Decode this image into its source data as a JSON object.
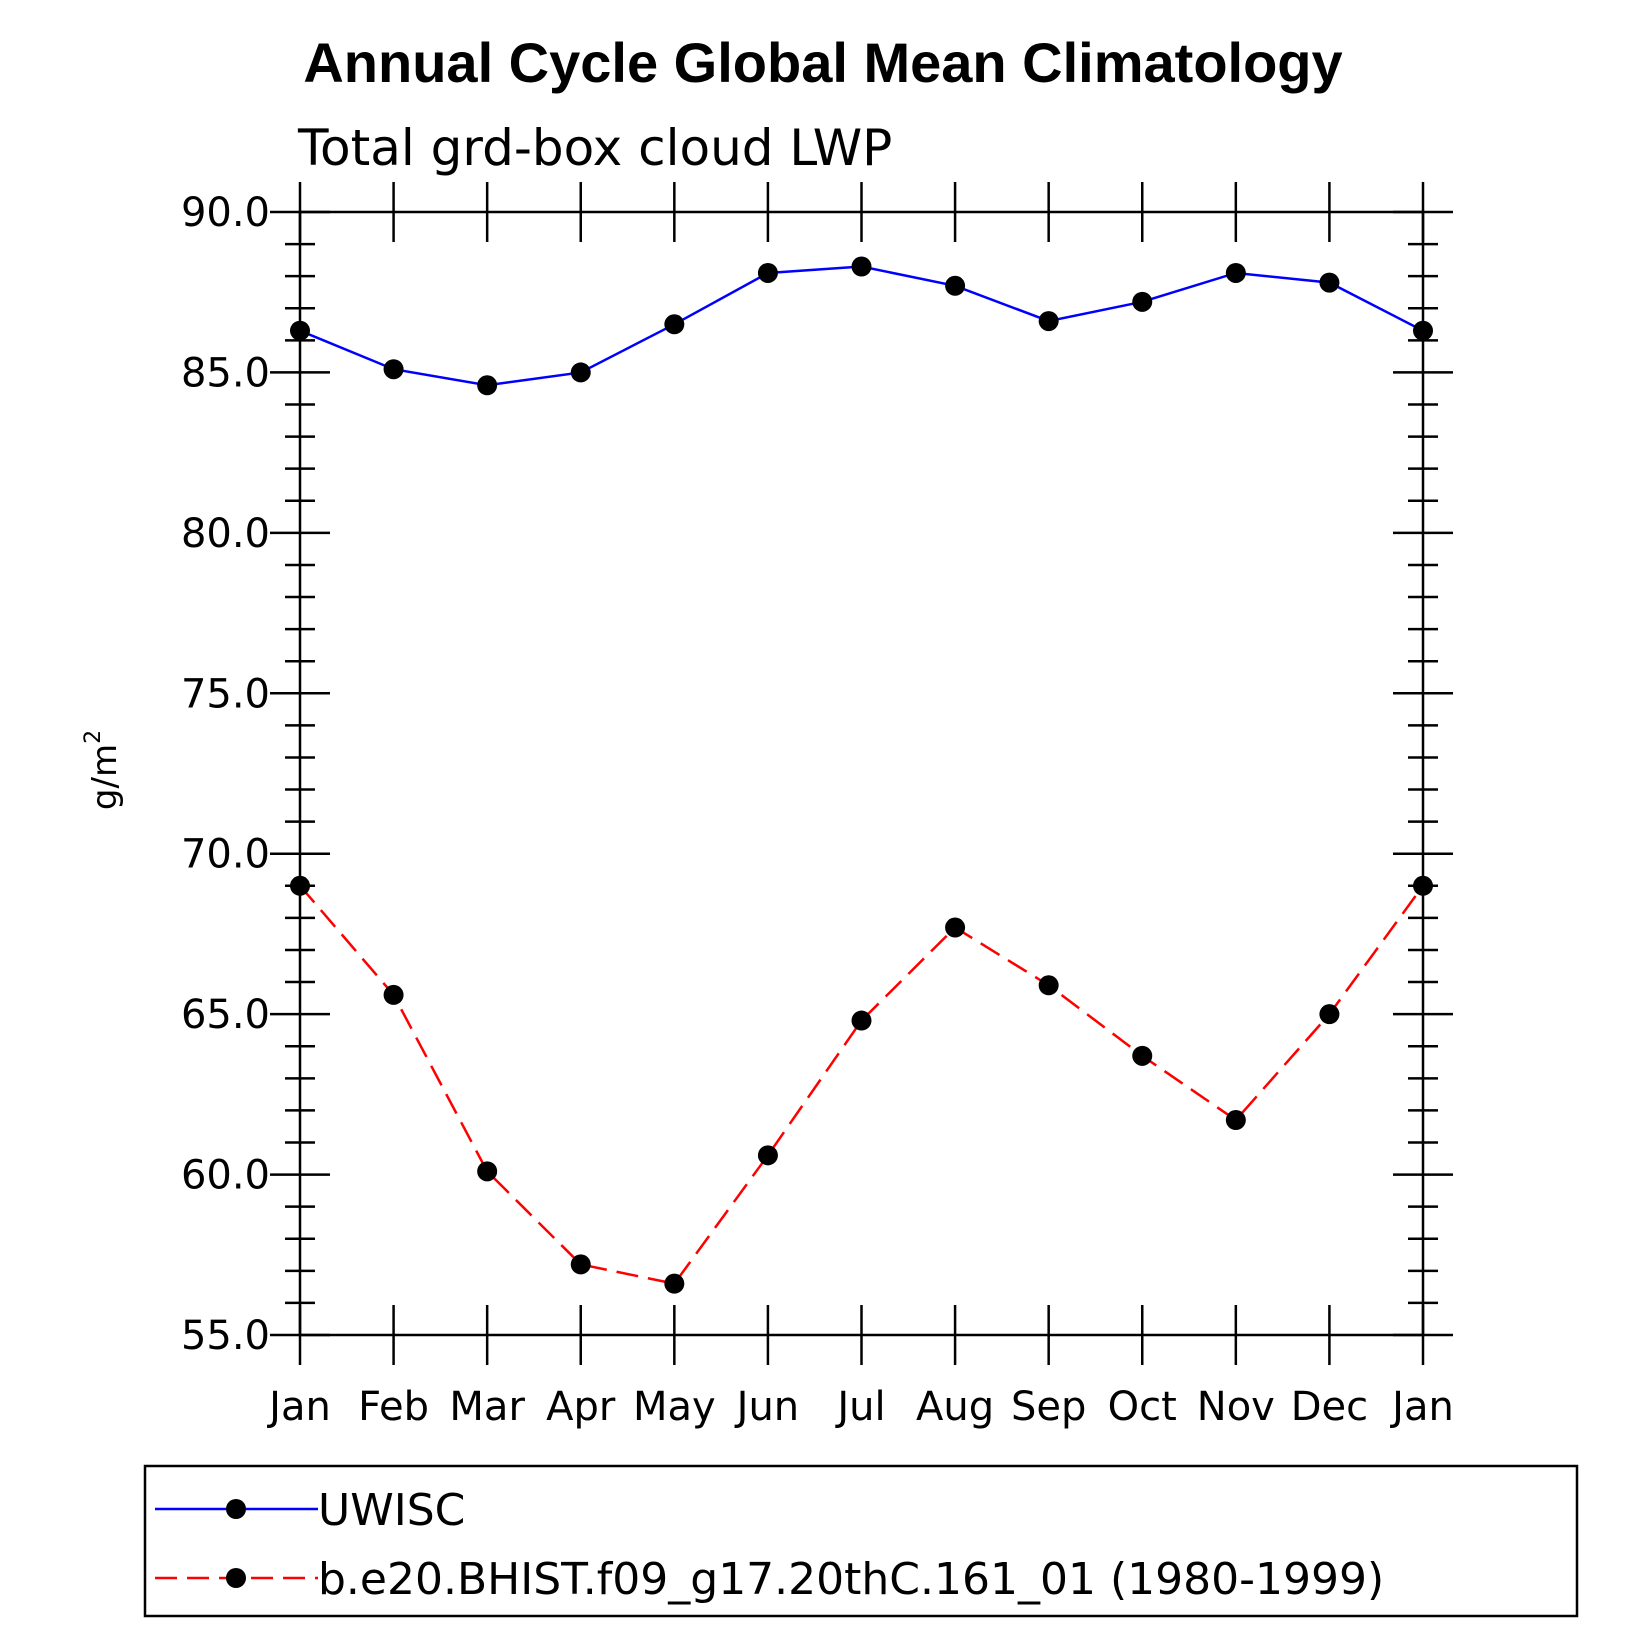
{
  "chart_data": {
    "type": "line",
    "title": "Annual Cycle Global Mean Climatology",
    "subtitle": "Total grd-box cloud LWP",
    "ylabel": "g/m",
    "ylabel_superscript": "2",
    "categories": [
      "Jan",
      "Feb",
      "Mar",
      "Apr",
      "May",
      "Jun",
      "Jul",
      "Aug",
      "Sep",
      "Oct",
      "Nov",
      "Dec",
      "Jan"
    ],
    "ylim": [
      55.0,
      90.0
    ],
    "yticks": [
      "55.0",
      "60.0",
      "65.0",
      "70.0",
      "75.0",
      "80.0",
      "85.0",
      "90.0"
    ],
    "series": [
      {
        "name": "UWISC",
        "color": "#0000ff",
        "dash": "solid",
        "values": [
          86.3,
          85.1,
          84.6,
          85.0,
          86.5,
          88.1,
          88.3,
          87.7,
          86.6,
          87.2,
          88.1,
          87.8,
          86.3
        ]
      },
      {
        "name": "b.e20.BHIST.f09_g17.20thC.161_01 (1980-1999)",
        "color": "#ff0000",
        "dash": "dashed",
        "values": [
          69.0,
          65.6,
          60.1,
          57.2,
          56.6,
          60.6,
          64.8,
          67.7,
          65.9,
          63.7,
          61.7,
          65.0,
          69.0
        ]
      }
    ],
    "legend_position": "bottom",
    "grid": false
  }
}
